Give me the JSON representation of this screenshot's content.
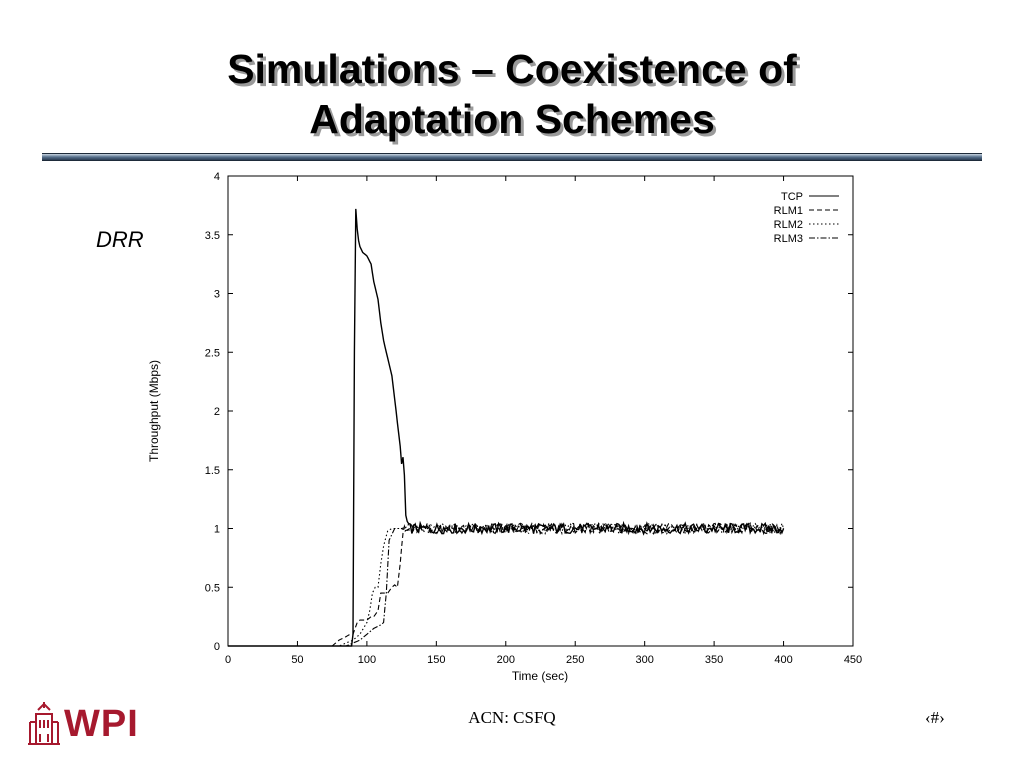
{
  "slide": {
    "title_line1": "Simulations – Coexistence of",
    "title_line2": "Adaptation Schemes",
    "side_label": "DRR",
    "footer_text": "ACN: CSFQ",
    "page_number": "‹#›",
    "logo_text": "WPI"
  },
  "colors": {
    "logo": "#a6192e",
    "rule": "#56708c"
  },
  "chart_data": {
    "type": "line",
    "xlabel": "Time (sec)",
    "ylabel": "Throughput (Mbps)",
    "xlim": [
      0,
      450
    ],
    "ylim": [
      0,
      4
    ],
    "x_ticks": [
      "0",
      "50",
      "100",
      "150",
      "200",
      "250",
      "300",
      "350",
      "400",
      "450"
    ],
    "y_ticks": [
      "0",
      "0.5",
      "1",
      "1.5",
      "2",
      "2.5",
      "3",
      "3.5",
      "4"
    ],
    "legend_position": "top-right",
    "grid": false,
    "series": [
      {
        "name": "TCP",
        "style": "solid",
        "x": [
          0,
          78,
          85,
          89,
          90,
          91,
          92,
          93,
          94,
          95,
          97,
          100,
          103,
          105,
          108,
          110,
          112,
          115,
          118,
          120,
          122,
          124,
          125,
          126,
          127,
          128,
          130,
          400
        ],
        "y": [
          0,
          0,
          0,
          0,
          0.1,
          2.5,
          3.72,
          3.55,
          3.45,
          3.4,
          3.35,
          3.32,
          3.25,
          3.1,
          2.95,
          2.75,
          2.6,
          2.45,
          2.3,
          2.1,
          1.9,
          1.7,
          1.55,
          1.6,
          1.45,
          1.1,
          1.0,
          1.0
        ]
      },
      {
        "name": "RLM1",
        "style": "dashed",
        "x": [
          0,
          75,
          80,
          85,
          88,
          90,
          93,
          95,
          100,
          103,
          105,
          108,
          110,
          112,
          115,
          118,
          120,
          122,
          124,
          126,
          128,
          130,
          400
        ],
        "y": [
          0,
          0,
          0.05,
          0.08,
          0.1,
          0.1,
          0.2,
          0.22,
          0.22,
          0.25,
          0.25,
          0.3,
          0.45,
          0.45,
          0.45,
          0.5,
          0.52,
          0.5,
          0.7,
          0.98,
          1.0,
          1.0,
          1.0
        ]
      },
      {
        "name": "RLM2",
        "style": "dotted",
        "x": [
          0,
          80,
          90,
          95,
          100,
          102,
          104,
          106,
          108,
          110,
          112,
          115,
          118,
          120,
          125,
          130,
          400
        ],
        "y": [
          0,
          0,
          0.05,
          0.1,
          0.2,
          0.3,
          0.45,
          0.5,
          0.5,
          0.7,
          0.85,
          0.98,
          1.0,
          1.0,
          1.0,
          1.0,
          1.0
        ]
      },
      {
        "name": "RLM3",
        "style": "dashdot",
        "x": [
          0,
          85,
          95,
          100,
          105,
          110,
          112,
          114,
          116,
          118,
          120,
          122,
          125,
          130,
          400
        ],
        "y": [
          0,
          0,
          0.05,
          0.1,
          0.15,
          0.18,
          0.2,
          0.45,
          0.9,
          0.95,
          1.0,
          1.0,
          1.0,
          1.0,
          1.0
        ]
      }
    ]
  }
}
